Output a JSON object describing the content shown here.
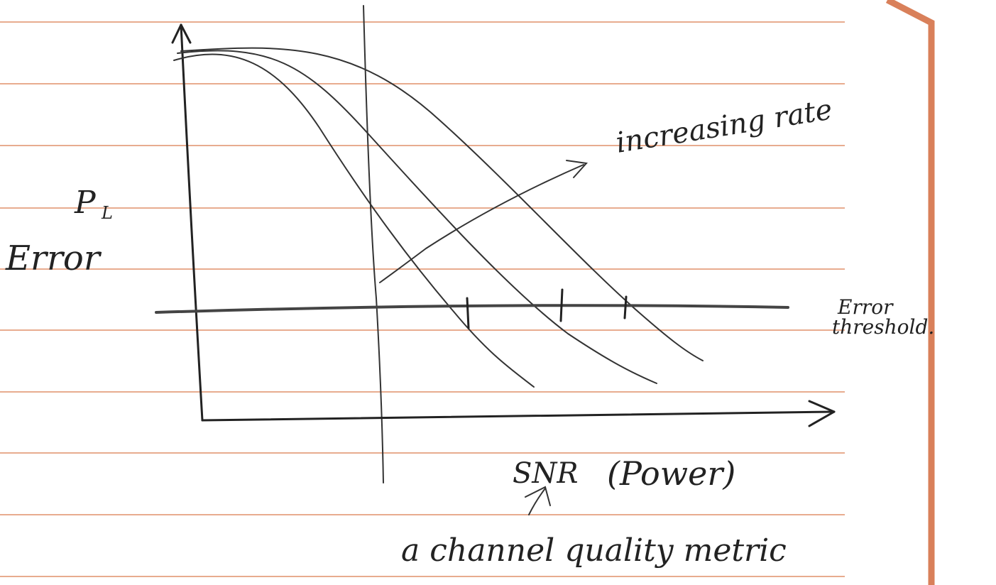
{
  "y_axis_label": {
    "symbol": "P",
    "subscript": "L",
    "text": "Error"
  },
  "arrow_label": "increasing rate",
  "threshold_label": {
    "line1": "Error",
    "line2": "threshold."
  },
  "x_axis_label": {
    "text": "SNR",
    "unit": "(Power)",
    "note": "a channel quality metric"
  }
}
